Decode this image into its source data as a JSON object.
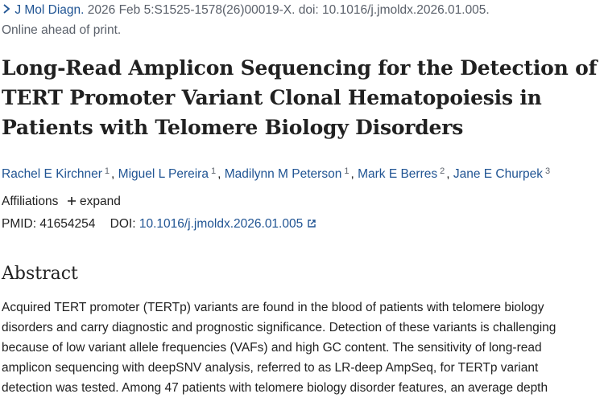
{
  "citation": {
    "journal": "J Mol Diagn.",
    "details": "2026 Feb 5:S1525-1578(26)00019-X. doi: 10.1016/j.jmoldx.2026.01.005."
  },
  "status": "Online ahead of print.",
  "title_lines": [
    "Long-Read Amplicon Sequencing for the Detection of",
    "TERT Promoter Variant Clonal Hematopoiesis in",
    "Patients with Telomere Biology Disorders"
  ],
  "authors": {
    "separator": ",",
    "list": [
      {
        "name": "Rachel E Kirchner",
        "affiliation": "1"
      },
      {
        "name": "Miguel L Pereira",
        "affiliation": "1"
      },
      {
        "name": "Madilynn M Peterson",
        "affiliation": "1"
      },
      {
        "name": "Mark E Berres",
        "affiliation": "2"
      },
      {
        "name": "Jane E Churpek",
        "affiliation": "3"
      }
    ]
  },
  "affiliations": {
    "label": "Affiliations",
    "toggle": "expand"
  },
  "identifiers": {
    "pmid_label": "PMID:",
    "pmid": "41654254",
    "doi_label": "DOI:",
    "doi": "10.1016/j.jmoldx.2026.01.005"
  },
  "abstract": {
    "heading": "Abstract",
    "lines": [
      "Acquired TERT promoter (TERTp) variants are found in the blood of patients with telomere biology",
      "disorders and carry diagnostic and prognostic significance. Detection of these variants is challenging",
      "because of low variant allele frequencies (VAFs) and high GC content. The sensitivity of long-read",
      "amplicon sequencing with deepSNV analysis, referred to as LR-deep AmpSeq, for TERTp variant",
      "detection was tested. Among 47 patients with telomere biology disorder features, an average depth"
    ]
  }
}
